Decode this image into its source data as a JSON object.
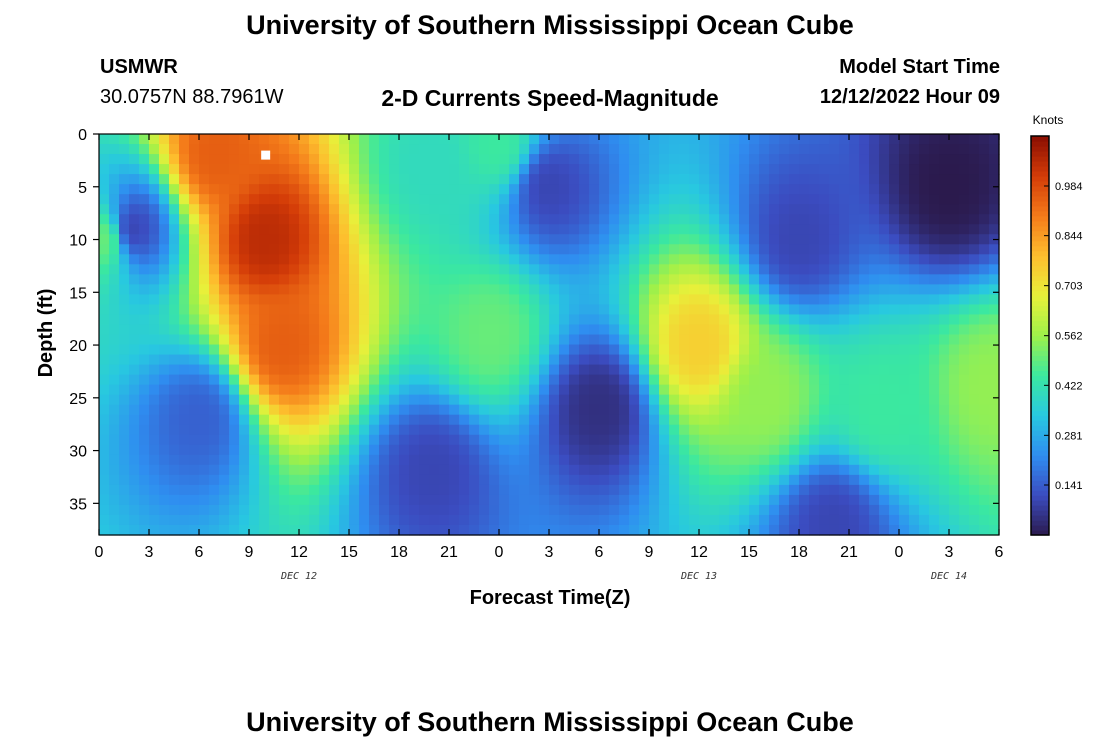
{
  "header": {
    "title": "University of Southern Mississippi Ocean Cube",
    "station": "USMWR",
    "coordinates": "30.0757N  88.7961W",
    "chart_title": "2-D Currents Speed-Magnitude",
    "start_label": "Model Start Time",
    "start_value": "12/12/2022 Hour 09"
  },
  "footer": {
    "title": "University of Southern Mississippi Ocean Cube"
  },
  "chart_data": {
    "type": "heatmap",
    "title": "2-D Currents Speed-Magnitude",
    "xlabel": "Forecast Time(Z)",
    "ylabel": "Depth (ft)",
    "x_range_hours": [
      0,
      54
    ],
    "x_ticks": [
      "0",
      "3",
      "6",
      "9",
      "12",
      "15",
      "18",
      "21",
      "0",
      "3",
      "6",
      "9",
      "12",
      "15",
      "18",
      "21",
      "0",
      "3",
      "6"
    ],
    "date_labels": [
      {
        "label": "DEC 12",
        "at_hour": 12
      },
      {
        "label": "DEC 13",
        "at_hour": 36
      },
      {
        "label": "DEC 14",
        "at_hour": 51
      }
    ],
    "y_range_ft": [
      0,
      38
    ],
    "y_ticks": [
      0,
      5,
      10,
      15,
      20,
      25,
      30,
      35
    ],
    "y_inverted": true,
    "colorbar": {
      "unit": "Knots",
      "range": [
        0,
        1.125
      ],
      "ticks": [
        "0.984",
        "0.844",
        "0.703",
        "0.562",
        "0.422",
        "0.281",
        "0.141"
      ],
      "tick_values": [
        0.984,
        0.844,
        0.703,
        0.562,
        0.422,
        0.281,
        0.141
      ],
      "colormap": [
        "#2b1a4d",
        "#3b4cc0",
        "#2f8df0",
        "#28c8e0",
        "#3be8a0",
        "#9ef04a",
        "#e8f03a",
        "#fdbf2e",
        "#f47b1a",
        "#d43c08",
        "#8a0e02"
      ]
    },
    "features": [
      {
        "label": "core 1",
        "t": 10.0,
        "d": 10.0,
        "speed": 1.05
      },
      {
        "label": "core 2",
        "t": 11.0,
        "d": 20.0,
        "speed": 0.95
      },
      {
        "label": "core 3",
        "t": 7.0,
        "d": 2.0,
        "speed": 0.95
      },
      {
        "label": "surface edge",
        "t": 0.3,
        "d": 10.0,
        "speed": 0.5
      },
      {
        "label": "core 4",
        "t": 20.0,
        "d": 3.0,
        "speed": 0.4
      },
      {
        "label": "core 5",
        "t": 24.0,
        "d": 1.0,
        "speed": 0.45
      },
      {
        "label": "core 6",
        "t": 23.5,
        "d": 19.0,
        "speed": 0.5
      },
      {
        "label": "core 7",
        "t": 36.0,
        "d": 20.0,
        "speed": 0.75
      },
      {
        "label": "core 8",
        "t": 40.0,
        "d": 25.0,
        "speed": 0.55
      },
      {
        "label": "core 9",
        "t": 47.0,
        "d": 26.0,
        "speed": 0.45
      },
      {
        "label": "core 10",
        "t": 53.5,
        "d": 24.0,
        "speed": 0.55
      },
      {
        "label": "low 1",
        "t": 2.0,
        "d": 9.0,
        "speed": 0.1
      },
      {
        "label": "low 2",
        "t": 6.0,
        "d": 27.0,
        "speed": 0.15
      },
      {
        "label": "low 3",
        "t": 27.0,
        "d": 5.0,
        "speed": 0.1
      },
      {
        "label": "low 4",
        "t": 30.0,
        "d": 26.0,
        "speed": 0.05
      },
      {
        "label": "low 5",
        "t": 42.0,
        "d": 10.0,
        "speed": 0.1
      },
      {
        "label": "low 6",
        "t": 51.0,
        "d": 5.0,
        "speed": 0.0
      },
      {
        "label": "low 7",
        "t": 44.0,
        "d": 37.0,
        "speed": 0.1
      },
      {
        "label": "low 8",
        "t": 20.0,
        "d": 32.0,
        "speed": 0.1
      }
    ],
    "marker": {
      "t": 10.0,
      "d": 2.0,
      "color": "#ffffff"
    },
    "grid": false,
    "legend": "colorbar right"
  }
}
